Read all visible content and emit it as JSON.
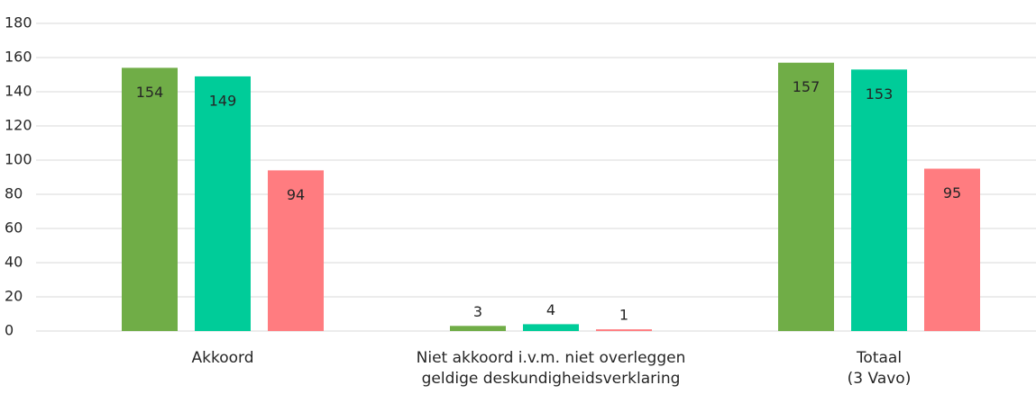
{
  "chart_data": {
    "type": "bar",
    "categories": [
      [
        "Akkoord"
      ],
      [
        "Niet akkoord i.v.m. niet overleggen",
        "geldige deskundigheidsverklaring"
      ],
      [
        "Totaal",
        "(3 Vavo)"
      ]
    ],
    "series": [
      {
        "color": "#70ad47",
        "values": [
          154,
          3,
          157
        ]
      },
      {
        "color": "#00cc99",
        "values": [
          149,
          4,
          153
        ]
      },
      {
        "color": "#ff7c80",
        "values": [
          94,
          1,
          95
        ]
      }
    ],
    "ylim": [
      0,
      180
    ],
    "yticks": [
      0,
      20,
      40,
      60,
      80,
      100,
      120,
      140,
      160,
      180
    ],
    "grid": true
  }
}
